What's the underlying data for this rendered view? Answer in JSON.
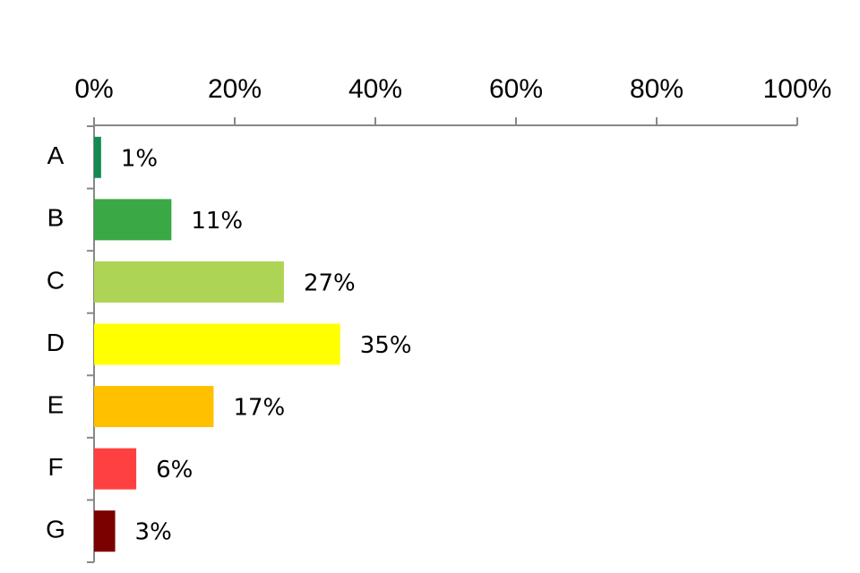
{
  "chart_data": {
    "type": "bar",
    "categories": [
      "A",
      "B",
      "C",
      "D",
      "E",
      "F",
      "G"
    ],
    "values": [
      1,
      11,
      27,
      35,
      17,
      6,
      3
    ],
    "value_labels": [
      "1%",
      "11%",
      "27%",
      "35%",
      "17%",
      "6%",
      "3%"
    ],
    "colors": [
      "#138a50",
      "#3aa845",
      "#add455",
      "#ffff00",
      "#ffc000",
      "#ff4040",
      "#7b0000"
    ],
    "xlim": [
      0,
      100
    ],
    "xticks": [
      {
        "value": 0,
        "label": "0%"
      },
      {
        "value": 20,
        "label": "20%"
      },
      {
        "value": 40,
        "label": "40%"
      },
      {
        "value": 60,
        "label": "60%"
      },
      {
        "value": 80,
        "label": "80%"
      },
      {
        "value": 100,
        "label": "100%"
      }
    ]
  }
}
